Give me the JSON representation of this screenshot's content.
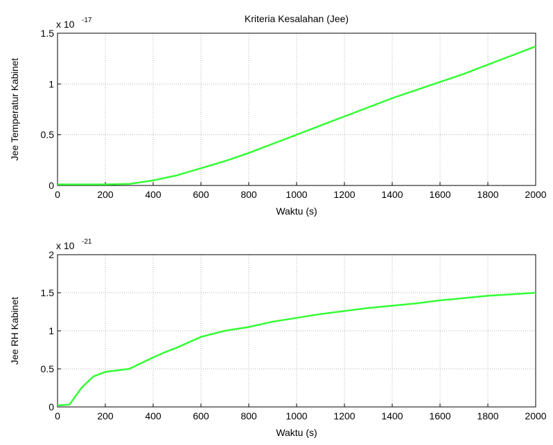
{
  "chart_data": [
    {
      "type": "line",
      "title": "Kriteria Kesalahan (Jee)",
      "xlabel": "Waktu (s)",
      "ylabel": "Jee Temperatur Kabinet",
      "scale_base": "x 10",
      "scale_exponent": "-17",
      "x": [
        0,
        100,
        200,
        300,
        400,
        500,
        600,
        700,
        800,
        900,
        1000,
        1100,
        1200,
        1300,
        1400,
        1500,
        1600,
        1700,
        1800,
        1900,
        2000
      ],
      "values": [
        0.01,
        0.01,
        0.01,
        0.015,
        0.05,
        0.1,
        0.17,
        0.24,
        0.32,
        0.41,
        0.5,
        0.59,
        0.68,
        0.77,
        0.86,
        0.94,
        1.02,
        1.1,
        1.19,
        1.28,
        1.37
      ],
      "color": "#33ff33",
      "xlim": [
        0,
        2000
      ],
      "xticks": [
        0,
        200,
        400,
        600,
        800,
        1000,
        1200,
        1400,
        1600,
        1800,
        2000
      ],
      "ylim": [
        0,
        1.5
      ],
      "yticks": [
        0,
        0.5,
        1,
        1.5
      ],
      "grid": true
    },
    {
      "type": "line",
      "xlabel": "Waktu (s)",
      "ylabel": "Jee RH Kabinet",
      "scale_base": "x 10",
      "scale_exponent": "-21",
      "x": [
        0,
        50,
        100,
        150,
        200,
        300,
        400,
        450,
        500,
        600,
        700,
        800,
        900,
        1000,
        1100,
        1200,
        1300,
        1400,
        1500,
        1600,
        1700,
        1800,
        1900,
        2000
      ],
      "values": [
        0.02,
        0.03,
        0.25,
        0.4,
        0.46,
        0.5,
        0.65,
        0.72,
        0.78,
        0.92,
        1.0,
        1.05,
        1.12,
        1.17,
        1.22,
        1.26,
        1.3,
        1.33,
        1.36,
        1.4,
        1.43,
        1.46,
        1.48,
        1.5
      ],
      "color": "#33ff33",
      "xlim": [
        0,
        2000
      ],
      "xticks": [
        0,
        200,
        400,
        600,
        800,
        1000,
        1200,
        1400,
        1600,
        1800,
        2000
      ],
      "ylim": [
        0,
        2
      ],
      "yticks": [
        0,
        0.5,
        1,
        1.5,
        2
      ],
      "grid": true
    }
  ]
}
